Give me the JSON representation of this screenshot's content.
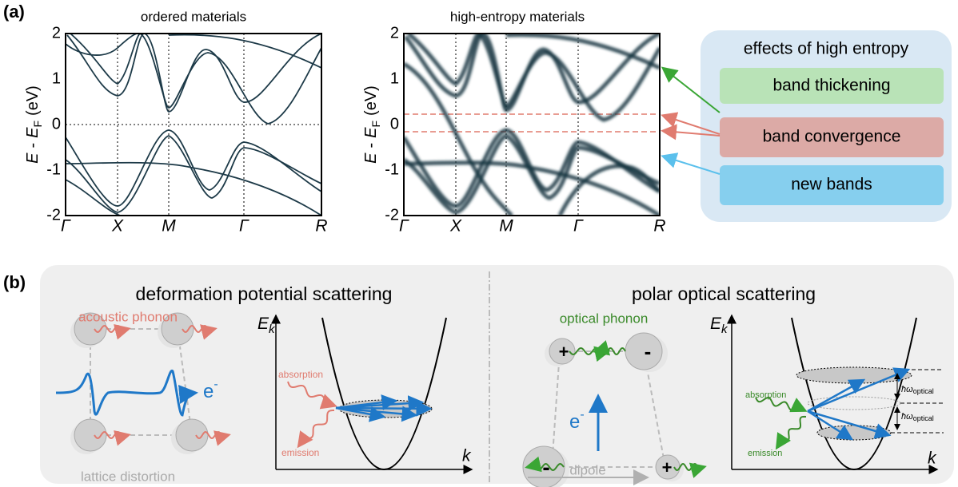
{
  "panel_a": {
    "label": "(a)",
    "ordered": {
      "title": "ordered materials",
      "ylabel": [
        "E",
        "-",
        "E",
        "F",
        "(eV)"
      ],
      "yticks": [
        "2",
        "1",
        "0",
        "-1",
        "-2"
      ],
      "kpoints": [
        "Γ",
        "X",
        "M",
        "Γ",
        "R"
      ]
    },
    "high_entropy": {
      "title": "high-entropy materials",
      "ylabel": [
        "E",
        "-",
        "E",
        "F",
        "(eV)"
      ],
      "yticks": [
        "2",
        "1",
        "0",
        "-1",
        "-2"
      ],
      "kpoints": [
        "Γ",
        "X",
        "M",
        "Γ",
        "R"
      ]
    },
    "effects": {
      "title": "effects of high entropy",
      "items": [
        "band thickening",
        "band convergence",
        "new bands"
      ]
    }
  },
  "panel_b": {
    "label": "(b)",
    "deformation": {
      "title": "deformation potential scattering",
      "phonon": "acoustic phonon",
      "distortion": "lattice distortion",
      "electron": [
        "e",
        "-"
      ],
      "axis_y": [
        "E",
        "k"
      ],
      "axis_x": "k",
      "absorption": "absorption",
      "emission": "emission"
    },
    "polar": {
      "title": "polar optical scattering",
      "phonon": "optical phonon",
      "dipole": "dipole",
      "electron": [
        "e",
        "-"
      ],
      "charges": [
        "+",
        "-",
        "-",
        "+"
      ],
      "axis_y": [
        "E",
        "k"
      ],
      "axis_x": "k",
      "absorption": "absorption",
      "emission": "emission",
      "energy": [
        [
          "ħω",
          "optical"
        ],
        [
          "ħω",
          "optical"
        ]
      ]
    }
  }
}
